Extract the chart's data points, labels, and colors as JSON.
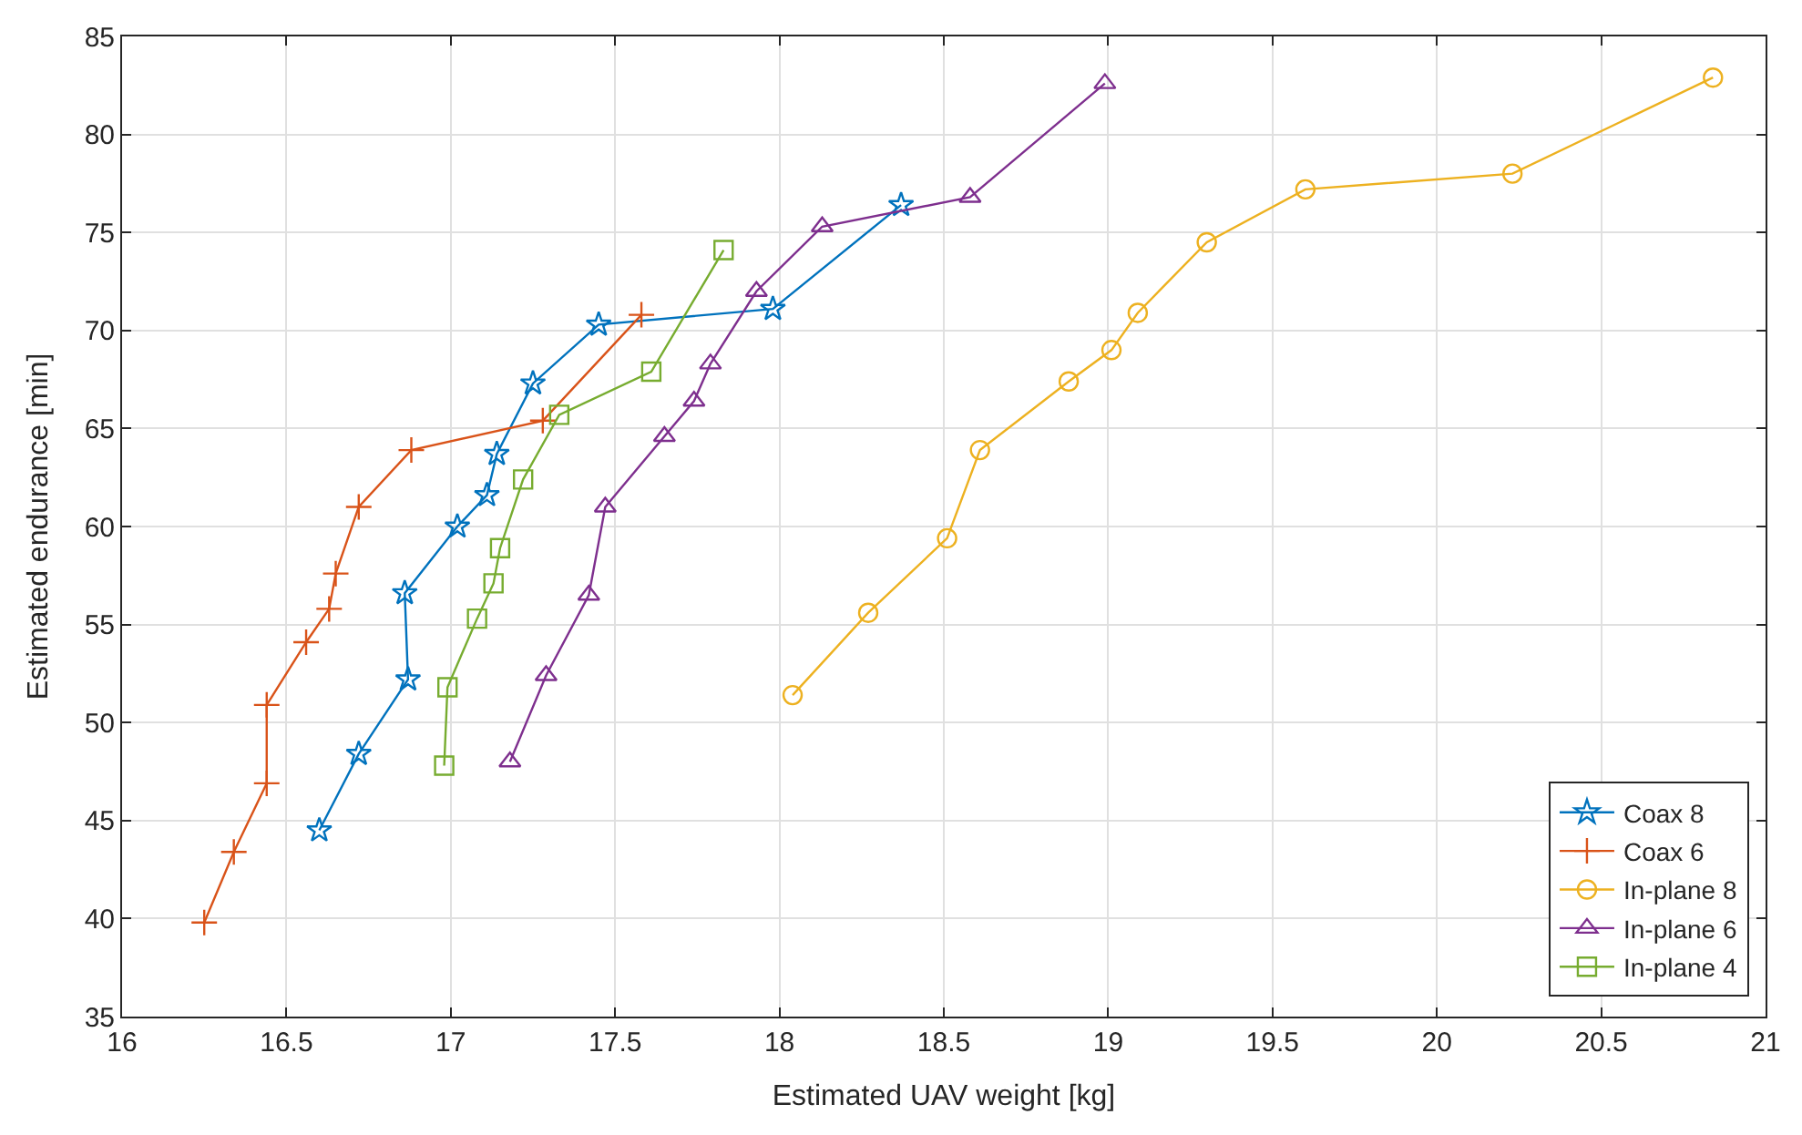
{
  "chart_data": {
    "type": "line",
    "xlabel": "Estimated UAV weight [kg]",
    "ylabel": "Estimated endurance [min]",
    "xlim": [
      16,
      21
    ],
    "xticks": [
      16,
      16.5,
      17,
      17.5,
      18,
      18.5,
      19,
      19.5,
      20,
      20.5,
      21
    ],
    "ylim": [
      35,
      85
    ],
    "yticks": [
      35,
      40,
      45,
      50,
      55,
      60,
      65,
      70,
      75,
      80,
      85
    ],
    "grid": true,
    "legend": "bottom right",
    "series": [
      {
        "name": "Coax 8",
        "color": "#0072bd",
        "marker": "star",
        "x": [
          16.6,
          16.72,
          16.87,
          16.86,
          17.02,
          17.11,
          17.14,
          17.25,
          17.45,
          17.98,
          18.37
        ],
        "values": [
          44.5,
          48.4,
          52.2,
          56.6,
          60.0,
          61.6,
          63.7,
          67.3,
          70.3,
          71.1,
          76.4
        ]
      },
      {
        "name": "Coax 6",
        "color": "#d95319",
        "marker": "cross",
        "x": [
          16.25,
          16.34,
          16.44,
          16.44,
          16.56,
          16.63,
          16.65,
          16.72,
          16.88,
          17.28,
          17.58
        ],
        "values": [
          39.8,
          43.4,
          46.9,
          50.9,
          54.1,
          55.8,
          57.6,
          61.0,
          63.9,
          65.4,
          70.8
        ]
      },
      {
        "name": "In-plane 8",
        "color": "#edb120",
        "marker": "circle",
        "x": [
          18.04,
          18.27,
          18.51,
          18.61,
          18.88,
          19.01,
          19.09,
          19.3,
          19.6,
          20.23,
          20.84
        ],
        "values": [
          51.4,
          55.6,
          59.4,
          63.9,
          67.4,
          69.0,
          70.9,
          74.5,
          77.2,
          78.0,
          82.9
        ]
      },
      {
        "name": "In-plane 6",
        "color": "#7e2f8e",
        "marker": "triangle",
        "x": [
          17.18,
          17.29,
          17.42,
          17.47,
          17.65,
          17.74,
          17.79,
          17.93,
          18.13,
          18.58,
          18.99
        ],
        "values": [
          48.0,
          52.4,
          56.5,
          61.0,
          64.6,
          66.4,
          68.3,
          72.0,
          75.3,
          76.8,
          82.6
        ]
      },
      {
        "name": "In-plane 4",
        "color": "#77ac30",
        "marker": "square",
        "x": [
          16.98,
          16.99,
          17.08,
          17.13,
          17.15,
          17.22,
          17.33,
          17.61,
          17.83
        ],
        "values": [
          47.8,
          51.8,
          55.3,
          57.1,
          58.9,
          62.4,
          65.7,
          67.9,
          74.1
        ]
      }
    ]
  }
}
